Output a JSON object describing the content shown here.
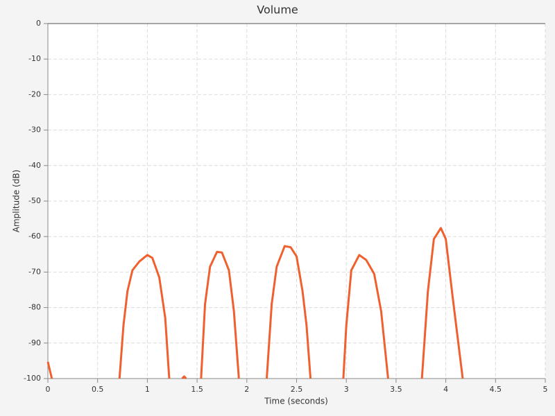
{
  "chart_data": {
    "type": "line",
    "title": "Volume",
    "x_label": "Time (seconds)",
    "y_label": "Amplitude (dB)",
    "x": [
      0,
      0.04,
      null,
      0.72,
      0.76,
      0.8,
      0.85,
      0.92,
      1.0,
      1.05,
      1.12,
      1.18,
      1.22,
      null,
      1.35,
      1.37,
      1.39,
      null,
      1.54,
      1.58,
      1.63,
      1.7,
      1.75,
      1.82,
      1.87,
      1.92,
      null,
      2.2,
      2.25,
      2.3,
      2.38,
      2.44,
      2.5,
      2.56,
      2.6,
      2.64,
      null,
      2.97,
      3.0,
      3.05,
      3.13,
      3.2,
      3.28,
      3.35,
      3.42,
      null,
      3.76,
      3.82,
      3.88,
      3.95,
      4.0,
      4.07,
      4.17
    ],
    "series": [
      {
        "name": "Volume",
        "color": "#f0602e",
        "values": [
          -95.3,
          -100,
          null,
          -100,
          -85,
          -75.4,
          -69.5,
          -67,
          -65.2,
          -66,
          -71.5,
          -83,
          -100,
          null,
          -100,
          -99.4,
          -100,
          null,
          -100,
          -79,
          -68.5,
          -64.3,
          -64.5,
          -69.5,
          -81,
          -100,
          null,
          -100,
          -79,
          -68.5,
          -62.7,
          -63,
          -65.6,
          -75.4,
          -85,
          -100,
          null,
          -100,
          -85,
          -69.5,
          -65.2,
          -66.6,
          -70.5,
          -81,
          -100,
          null,
          -100,
          -75.4,
          -60.7,
          -57.6,
          -60.7,
          -77.3,
          -100
        ]
      }
    ],
    "xlim": [
      0,
      5
    ],
    "xticks": [
      0,
      0.5,
      1,
      1.5,
      2,
      2.5,
      3,
      3.5,
      4,
      4.5,
      5
    ],
    "ylim": [
      -100,
      0
    ],
    "yticks": [
      0,
      -10,
      -20,
      -30,
      -40,
      -50,
      -60,
      -70,
      -80,
      -90,
      -100
    ],
    "grid": true
  }
}
